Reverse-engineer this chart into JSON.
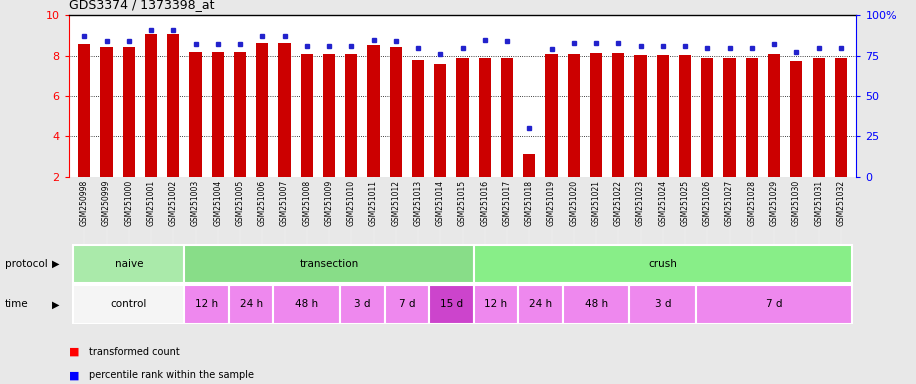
{
  "title": "GDS3374 / 1373398_at",
  "samples": [
    "GSM250998",
    "GSM250999",
    "GSM251000",
    "GSM251001",
    "GSM251002",
    "GSM251003",
    "GSM251004",
    "GSM251005",
    "GSM251006",
    "GSM251007",
    "GSM251008",
    "GSM251009",
    "GSM251010",
    "GSM251011",
    "GSM251012",
    "GSM251013",
    "GSM251014",
    "GSM251015",
    "GSM251016",
    "GSM251017",
    "GSM251018",
    "GSM251019",
    "GSM251020",
    "GSM251021",
    "GSM251022",
    "GSM251023",
    "GSM251024",
    "GSM251025",
    "GSM251026",
    "GSM251027",
    "GSM251028",
    "GSM251029",
    "GSM251030",
    "GSM251031",
    "GSM251032"
  ],
  "red_values": [
    8.6,
    8.45,
    8.45,
    9.1,
    9.1,
    8.2,
    8.2,
    8.2,
    8.65,
    8.65,
    8.1,
    8.1,
    8.1,
    8.55,
    8.45,
    7.8,
    7.6,
    7.9,
    7.9,
    7.9,
    3.1,
    8.1,
    8.1,
    8.15,
    8.15,
    8.05,
    8.05,
    8.05,
    7.9,
    7.9,
    7.9,
    8.1,
    7.75,
    7.9,
    7.9
  ],
  "blue_values": [
    87,
    84,
    84,
    91,
    91,
    82,
    82,
    82,
    87,
    87,
    81,
    81,
    81,
    85,
    84,
    80,
    76,
    80,
    85,
    84,
    30,
    79,
    83,
    83,
    83,
    81,
    81,
    81,
    80,
    80,
    80,
    82,
    77,
    80,
    80
  ],
  "y_min": 2,
  "y_max": 10,
  "y_ticks": [
    2,
    4,
    6,
    8,
    10
  ],
  "y2_ticks": [
    0,
    25,
    50,
    75,
    100
  ],
  "proto_defs": [
    {
      "label": "naive",
      "start": 0,
      "end": 5,
      "color": "#aaeaaa"
    },
    {
      "label": "transection",
      "start": 5,
      "end": 18,
      "color": "#88dd88"
    },
    {
      "label": "crush",
      "start": 18,
      "end": 35,
      "color": "#88ee88"
    }
  ],
  "time_defs": [
    {
      "label": "control",
      "start": 0,
      "end": 5,
      "color": "#f5f5f5"
    },
    {
      "label": "12 h",
      "start": 5,
      "end": 7,
      "color": "#ee88ee"
    },
    {
      "label": "24 h",
      "start": 7,
      "end": 9,
      "color": "#ee88ee"
    },
    {
      "label": "48 h",
      "start": 9,
      "end": 12,
      "color": "#ee88ee"
    },
    {
      "label": "3 d",
      "start": 12,
      "end": 14,
      "color": "#ee88ee"
    },
    {
      "label": "7 d",
      "start": 14,
      "end": 16,
      "color": "#ee88ee"
    },
    {
      "label": "15 d",
      "start": 16,
      "end": 18,
      "color": "#cc44cc"
    },
    {
      "label": "12 h",
      "start": 18,
      "end": 20,
      "color": "#ee88ee"
    },
    {
      "label": "24 h",
      "start": 20,
      "end": 22,
      "color": "#ee88ee"
    },
    {
      "label": "48 h",
      "start": 22,
      "end": 25,
      "color": "#ee88ee"
    },
    {
      "label": "3 d",
      "start": 25,
      "end": 28,
      "color": "#ee88ee"
    },
    {
      "label": "7 d",
      "start": 28,
      "end": 35,
      "color": "#ee88ee"
    }
  ],
  "bar_color": "#cc0000",
  "dot_color": "#2222cc",
  "fig_bg": "#e8e8e8",
  "plot_bg": "#ffffff",
  "label_bg": "#c8c8c8"
}
